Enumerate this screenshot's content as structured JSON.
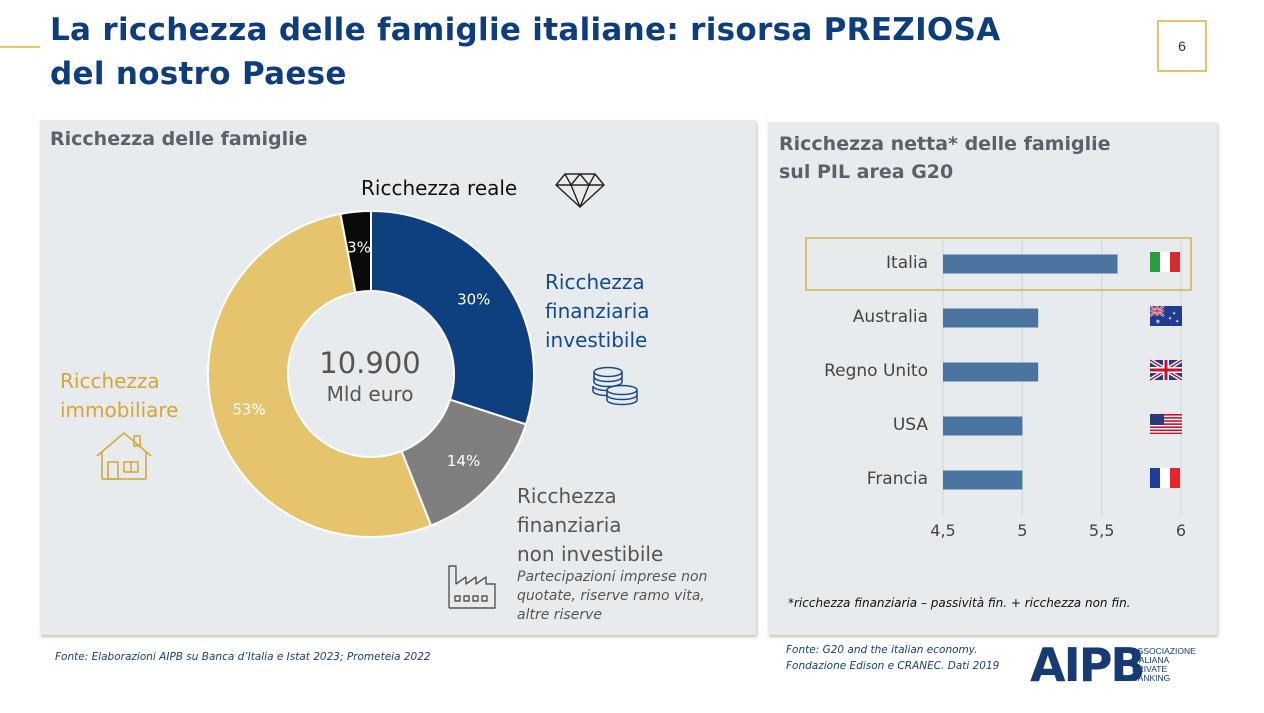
{
  "header": {
    "title": "La ricchezza delle famiglie italiane: risorsa PREZIOSA del nostro Paese",
    "page_number": "6"
  },
  "left_panel": {
    "title": "Ricchezza delle famiglie",
    "center_value": "10.900",
    "center_unit": "Mld euro",
    "labels": {
      "reale": "Ricchezza reale",
      "finanziaria_investibile": [
        "Ricchezza",
        "finanziaria",
        "investibile"
      ],
      "immobiliare": [
        "Ricchezza",
        "immobiliare"
      ],
      "finanziaria_non_investibile": [
        "Ricchezza",
        "finanziaria",
        "non investibile"
      ],
      "finanziaria_non_investibile_note": [
        "Partecipazioni imprese non",
        "quotate, riserve ramo vita,",
        "altre riserve"
      ]
    },
    "icons": [
      "diamond-icon",
      "coins-icon",
      "house-icon",
      "factory-icon"
    ]
  },
  "chart_data": [
    {
      "type": "pie",
      "title": "Ricchezza delle famiglie",
      "donut": true,
      "center_text": "10.900 Mld euro",
      "slices": [
        {
          "name": "Ricchezza finanziaria investibile",
          "value": 30,
          "label": "30%",
          "color": "#0e3f7f"
        },
        {
          "name": "Ricchezza finanziaria non investibile",
          "value": 14,
          "label": "14%",
          "color": "#7f7f7f"
        },
        {
          "name": "Ricchezza immobiliare",
          "value": 53,
          "label": "53%",
          "color": "#e6c46e"
        },
        {
          "name": "Ricchezza reale",
          "value": 3,
          "label": "3%",
          "color": "#0a0a0a"
        }
      ]
    },
    {
      "type": "bar",
      "orientation": "horizontal",
      "title": "Ricchezza netta* delle famiglie sul PIL area G20",
      "categories": [
        "Italia",
        "Australia",
        "Regno Unito",
        "USA",
        "Francia"
      ],
      "values": [
        5.6,
        5.1,
        5.1,
        5.0,
        5.0
      ],
      "xlim": [
        4.5,
        6
      ],
      "xticks": [
        "4,5",
        "5",
        "5,5",
        "6"
      ],
      "xtick_values": [
        4.5,
        5,
        5.5,
        6
      ],
      "highlight": "Italia",
      "bar_color": "#4a74a0",
      "grid": true
    }
  ],
  "right_panel": {
    "title": [
      "Ricchezza netta* delle famiglie",
      "sul PIL area G20"
    ],
    "note": "*ricchezza finanziaria – passività fin. + ricchezza non fin.",
    "flags": [
      "italy-flag-icon",
      "australia-flag-icon",
      "uk-flag-icon",
      "usa-flag-icon",
      "france-flag-icon"
    ]
  },
  "footer": {
    "source_left": "Fonte: Elaborazioni AIPB su Banca d’Italia e Istat 2023; Prometeia 2022",
    "source_right": [
      "Fonte: G20 and the italian economy.",
      "Fondazione Edison e CRANEC. Dati 2019"
    ],
    "logo": "AIPB",
    "logo_sub": [
      "ASSOCIAZIONE",
      "ITALIANA",
      "PRIVATE",
      "BANKING"
    ]
  },
  "colors": {
    "title_blue": "#0d3d7a",
    "gold": "#e2c370",
    "panel_bg": "#e8ebee"
  }
}
